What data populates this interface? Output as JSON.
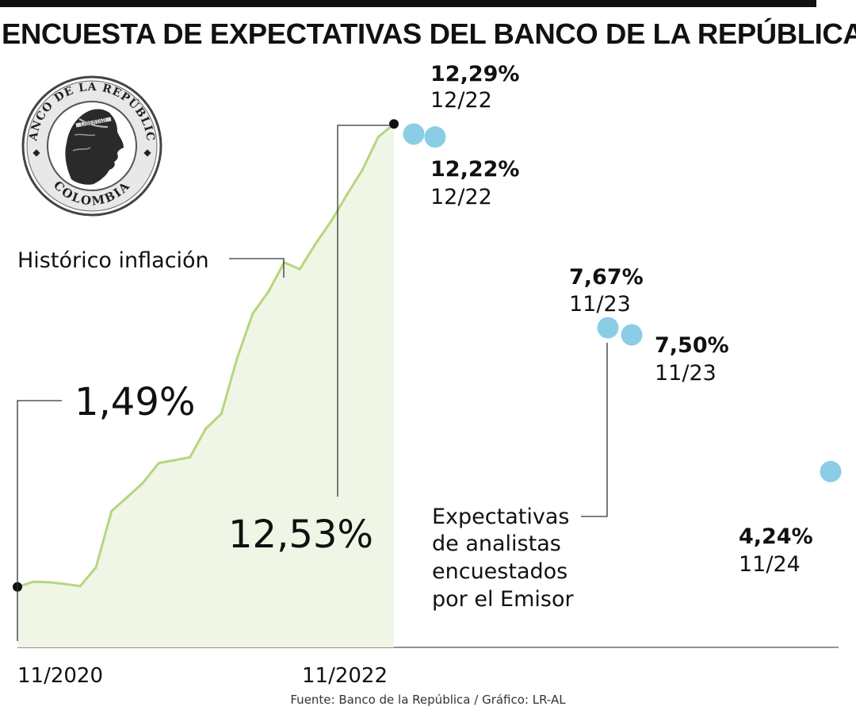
{
  "title": "ENCUESTA DE EXPECTATIVAS DEL BANCO DE LA REPÚBLICA",
  "source": "Fuente: Banco de la República / Gráfico: LR-AL",
  "logo": {
    "ring_text_top": "BANCO DE LA REPÚBLICA",
    "ring_text_bottom": "COLOMBIA",
    "band_text": "LIBERTAD"
  },
  "colors": {
    "line": "#b5d67f",
    "area": "#eff6e6",
    "expectation_dot": "#8ccde6",
    "text": "#111111",
    "axis": "#555555"
  },
  "chart_data": {
    "type": "line",
    "series": [
      {
        "name": "Histórico inflación",
        "x": [
          "11/2020",
          "12/2020",
          "1/2021",
          "2/2021",
          "3/2021",
          "4/2021",
          "5/2021",
          "6/2021",
          "7/2021",
          "8/2021",
          "9/2021",
          "10/2021",
          "11/2021",
          "12/2021",
          "1/2022",
          "2/2022",
          "3/2022",
          "4/2022",
          "5/2022",
          "6/2022",
          "7/2022",
          "8/2022",
          "9/2022",
          "10/2022",
          "11/2022"
        ],
        "y": [
          1.49,
          1.61,
          1.6,
          1.56,
          1.51,
          1.95,
          3.3,
          3.63,
          3.97,
          4.44,
          4.51,
          4.58,
          5.26,
          5.62,
          6.94,
          8.01,
          8.53,
          9.23,
          9.07,
          9.67,
          10.21,
          10.84,
          11.44,
          12.22,
          12.53
        ]
      },
      {
        "name": "Expectativas de analistas encuestados por el Emisor",
        "points": [
          {
            "value": 12.29,
            "label": "12,29%",
            "date": "12/22"
          },
          {
            "value": 12.22,
            "label": "12,22%",
            "date": "12/22"
          },
          {
            "value": 7.67,
            "label": "7,67%",
            "date": "11/23"
          },
          {
            "value": 7.5,
            "label": "7,50%",
            "date": "11/23"
          },
          {
            "value": 4.24,
            "label": "4,24%",
            "date": "11/24"
          }
        ]
      }
    ],
    "annotations": {
      "historic_label": "Histórico inflación",
      "expectations_label_lines": [
        "Expectativas",
        "de analistas",
        "encuestados",
        "por el Emisor"
      ],
      "start_value": "1,49%",
      "end_value": "12,53%"
    },
    "x_tick_labels": [
      "11/2020",
      "11/2022"
    ],
    "ylim": [
      0,
      13
    ],
    "grid": false,
    "legend": "none"
  }
}
